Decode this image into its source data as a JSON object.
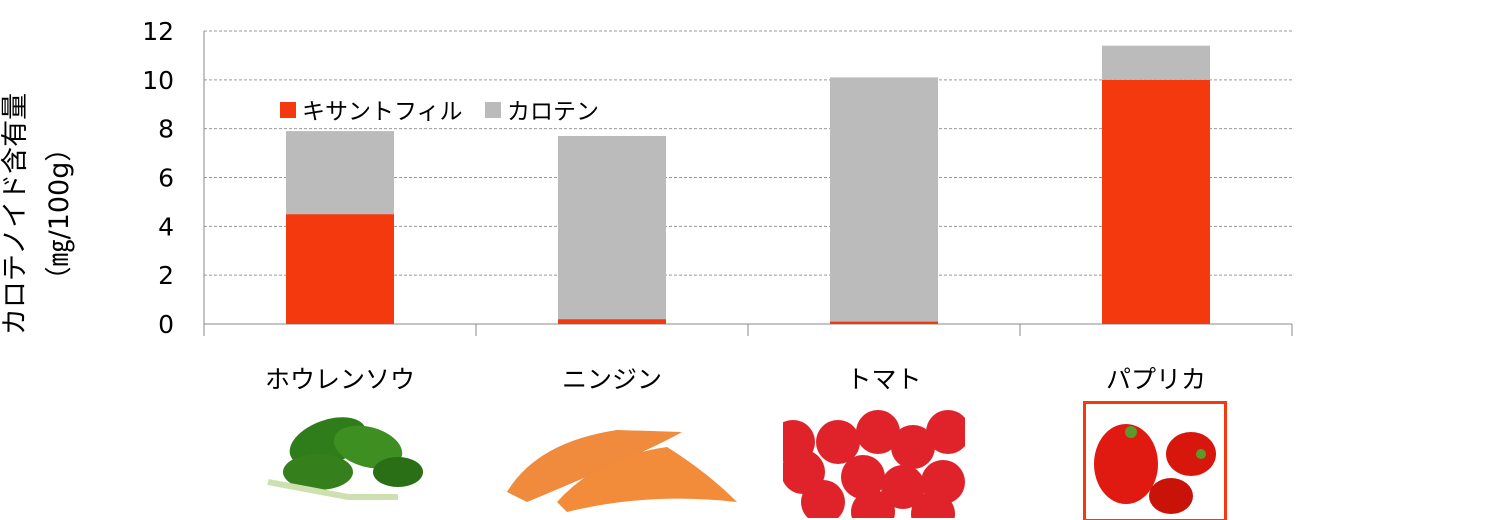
{
  "chart_data": {
    "type": "bar",
    "stacked": true,
    "categories": [
      "ホウレンソウ",
      "ニンジン",
      "トマト",
      "パプリカ"
    ],
    "series": [
      {
        "name": "キサントフィル",
        "values": [
          4.5,
          0.2,
          0.1,
          10.0
        ],
        "color": "#F4390E"
      },
      {
        "name": "カロテン",
        "values": [
          3.4,
          7.5,
          10.0,
          1.4
        ],
        "color": "#BBBBBB"
      }
    ],
    "ylabel": [
      "カロテノイド含有量",
      "（㎎/100g）"
    ],
    "ylim": [
      0,
      12
    ],
    "yticks": [
      0,
      2,
      4,
      6,
      8,
      10,
      12
    ],
    "grid": true,
    "legend": "top-left",
    "highlighted_category": "パプリカ",
    "highlight_color": "#F4390E"
  }
}
